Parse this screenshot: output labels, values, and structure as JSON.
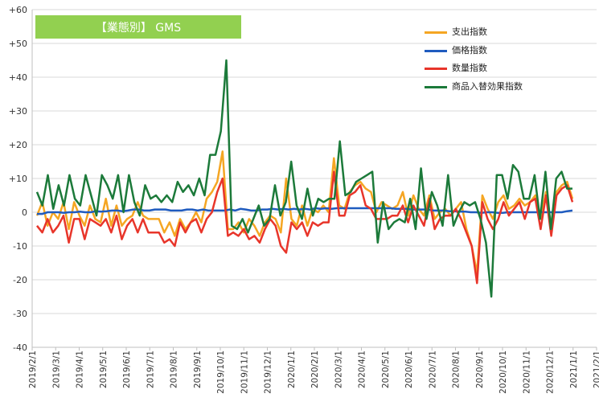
{
  "chart_data": {
    "type": "line",
    "title": "【業態別】 GMS",
    "ylim": [
      -40,
      60
    ],
    "yticks": [
      "+60",
      "+50",
      "+40",
      "+30",
      "+20",
      "+10",
      "0",
      "-10",
      "-20",
      "-30",
      "-40"
    ],
    "grid": "horizontal",
    "legend_position": "top-right",
    "x_labels": [
      "2019/2/1",
      "2019/3/1",
      "2019/4/1",
      "2019/5/1",
      "2019/6/1",
      "2019/7/1",
      "2019/8/1",
      "2019/9/1",
      "2019/10/1",
      "2019/11/1",
      "2019/12/1",
      "2020/1/1",
      "2020/2/1",
      "2020/3/1",
      "2020/4/1",
      "2020/5/1",
      "2020/6/1",
      "2020/7/1",
      "2020/8/1",
      "2020/9/1",
      "2020/10/1",
      "2020/11/1",
      "2020/12/1",
      "2021/1/1",
      "2021/2/1"
    ],
    "series": [
      {
        "name": "支出指数",
        "color": "#f5a623",
        "values": [
          -1,
          3,
          -4,
          0,
          -2,
          3,
          -5,
          3,
          -1,
          -4,
          2,
          -2,
          -3,
          4,
          -4,
          2,
          -4,
          -2,
          -1,
          3,
          -1,
          -2,
          -2,
          -2,
          -6,
          -3,
          -7,
          -2,
          -5,
          -3,
          0,
          -3,
          4,
          6,
          9,
          18,
          -5,
          -5,
          -3,
          -6,
          -2,
          -4,
          -7,
          -3,
          -1,
          -2,
          -6,
          10,
          -2,
          -4,
          2,
          -4,
          1,
          0,
          2,
          0,
          16,
          2,
          1,
          6,
          8,
          9,
          7,
          6,
          0,
          3,
          2,
          1,
          2,
          6,
          -1,
          5,
          1,
          -1,
          5,
          -2,
          0,
          1,
          -1,
          1,
          3,
          -5,
          -10,
          -18,
          5,
          1,
          -2,
          3,
          5,
          1,
          2,
          4,
          2,
          3,
          5,
          -2,
          6,
          -4,
          6,
          8,
          9,
          4
        ]
      },
      {
        "name": "価格指数",
        "color": "#1f5bbf",
        "values": [
          -0.5,
          -0.5,
          0,
          0,
          0,
          -0.2,
          0,
          0,
          0.2,
          0,
          0,
          0.3,
          0.2,
          0.3,
          0.5,
          0.5,
          0.3,
          0.5,
          0.8,
          0.8,
          0.5,
          0.5,
          0.8,
          0.8,
          0.8,
          0.5,
          0.5,
          0.5,
          0.8,
          0.8,
          0.5,
          0.8,
          0.5,
          0.5,
          0.5,
          0.5,
          0.8,
          0.5,
          1,
          0.8,
          0.5,
          0.5,
          0.8,
          0.8,
          1,
          0.8,
          1,
          0.8,
          1,
          0.8,
          1,
          0.8,
          1.2,
          1,
          1.2,
          1,
          1.2,
          1.2,
          1.2,
          1.2,
          1.2,
          1.2,
          1.2,
          1.2,
          1.2,
          1.2,
          1.2,
          1,
          1,
          1,
          0.8,
          0.8,
          0.8,
          0.8,
          0.5,
          0.5,
          0.5,
          0.3,
          0.3,
          0.2,
          0.2,
          0,
          0,
          -0.2,
          0,
          0,
          -0.2,
          -0.2,
          0,
          0,
          0,
          0,
          0,
          0,
          0,
          0,
          0,
          0,
          0,
          0.3,
          0.5
        ]
      },
      {
        "name": "数量指数",
        "color": "#e8352a",
        "values": [
          -4,
          -6,
          -2,
          -6,
          -4,
          -1,
          -9,
          -2,
          -2,
          -8,
          -2,
          -3,
          -4,
          -2,
          -6,
          -1,
          -8,
          -4,
          -2,
          -6,
          -2,
          -6,
          -6,
          -6,
          -9,
          -8,
          -10,
          -3,
          -6,
          -3,
          -2,
          -6,
          -2,
          0,
          6,
          10,
          -7,
          -6,
          -7,
          -5,
          -8,
          -7,
          -9,
          -5,
          -2,
          -4,
          -10,
          -12,
          -3,
          -5,
          -3,
          -7,
          -3,
          -4,
          -3,
          -3,
          12,
          -1,
          -1,
          5,
          6,
          8,
          2,
          1,
          -2,
          -2,
          -2,
          -1,
          -1,
          2,
          -3,
          2,
          -1,
          -4,
          4,
          -5,
          -2,
          -1,
          -1,
          1,
          -2,
          -6,
          -10,
          -21,
          3,
          -2,
          -5,
          -2,
          3,
          -1,
          1,
          3,
          -2,
          3,
          4,
          -5,
          5,
          -7,
          5,
          7,
          8,
          3
        ]
      },
      {
        "name": "商品入替効果指数",
        "color": "#1c7a3a",
        "values": [
          6,
          2,
          11,
          1,
          8,
          2,
          11,
          4,
          2,
          11,
          5,
          -1,
          11,
          8,
          4,
          11,
          0,
          11,
          3,
          -1,
          8,
          4,
          5,
          3,
          5,
          3,
          9,
          6,
          8,
          5,
          10,
          5,
          17,
          17,
          24,
          45,
          -4,
          -5,
          -2,
          -6,
          -2,
          2,
          -4,
          -2,
          8,
          -1,
          3,
          15,
          2,
          -2,
          7,
          -1,
          4,
          3,
          4,
          4,
          21,
          5,
          6,
          9,
          10,
          11,
          12,
          -9,
          3,
          -5,
          -3,
          -2,
          -3,
          4,
          -5,
          13,
          -2,
          6,
          2,
          -4,
          11,
          -4,
          0,
          3,
          2,
          3,
          -2,
          -9,
          -25,
          11,
          11,
          4,
          14,
          12,
          4,
          4,
          11,
          -2,
          12,
          -5,
          10,
          12,
          7,
          7
        ]
      }
    ]
  }
}
